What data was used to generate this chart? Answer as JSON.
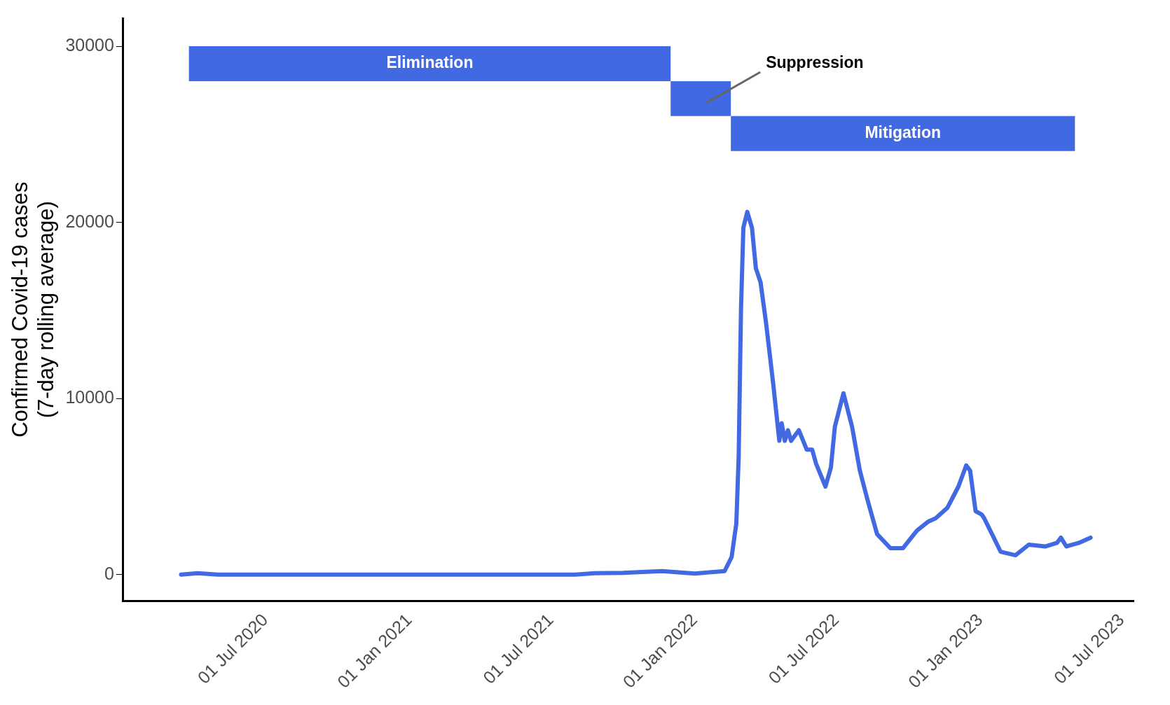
{
  "chart_data": {
    "type": "line",
    "ylabel": "Confirmed Covid-19 cases\n(7-day rolling average)",
    "x": [
      "2020-03-15",
      "2020-04-05",
      "2020-05-01",
      "2021-08-01",
      "2021-08-26",
      "2021-10-01",
      "2021-11-20",
      "2022-01-01",
      "2022-02-08",
      "2022-02-17",
      "2022-02-23",
      "2022-02-26",
      "2022-03-01",
      "2022-03-04",
      "2022-03-09",
      "2022-03-15",
      "2022-03-20",
      "2022-03-26",
      "2022-04-02",
      "2022-04-11",
      "2022-04-19",
      "2022-04-22",
      "2022-04-26",
      "2022-04-30",
      "2022-05-04",
      "2022-05-14",
      "2022-05-24",
      "2022-05-31",
      "2022-06-05",
      "2022-06-17",
      "2022-06-24",
      "2022-06-29",
      "2022-07-10",
      "2022-07-21",
      "2022-07-31",
      "2022-08-10",
      "2022-08-22",
      "2022-09-08",
      "2022-09-24",
      "2022-10-12",
      "2022-10-26",
      "2022-11-05",
      "2022-11-20",
      "2022-12-04",
      "2022-12-14",
      "2022-12-19",
      "2022-12-26",
      "2023-01-03",
      "2023-01-06",
      "2023-01-27",
      "2023-02-15",
      "2023-03-04",
      "2023-03-25",
      "2023-04-09",
      "2023-04-14",
      "2023-04-21",
      "2023-05-07",
      "2023-05-22"
    ],
    "series": [
      {
        "color": "#4169e1",
        "values": [
          0,
          80,
          0,
          0,
          80,
          100,
          200,
          60,
          200,
          1000,
          2900,
          6700,
          15100,
          19700,
          20600,
          19700,
          17400,
          16600,
          14300,
          10900,
          7600,
          8600,
          7600,
          8200,
          7600,
          8200,
          7100,
          7100,
          6300,
          5000,
          6100,
          8400,
          10300,
          8400,
          5900,
          4200,
          2300,
          1500,
          1500,
          2500,
          3000,
          3200,
          3800,
          5000,
          6200,
          5900,
          3600,
          3400,
          3200,
          1300,
          1100,
          1700,
          1600,
          1800,
          2100,
          1600,
          1800,
          2100
        ]
      }
    ],
    "xlim": [
      "2020-01-01",
      "2023-07-16"
    ],
    "xticks": [
      {
        "value": "2020-07-01",
        "label": "01 Jul 2020"
      },
      {
        "value": "2021-01-01",
        "label": "01 Jan 2021"
      },
      {
        "value": "2021-07-01",
        "label": "01 Jul 2021"
      },
      {
        "value": "2022-01-01",
        "label": "01 Jan 2022"
      },
      {
        "value": "2022-07-01",
        "label": "01 Jul 2022"
      },
      {
        "value": "2023-01-01",
        "label": "01 Jan 2023"
      },
      {
        "value": "2023-07-01",
        "label": "01 Jul 2023"
      }
    ],
    "ylim": [
      -1500,
      31600
    ],
    "yticks": [
      0,
      10000,
      20000,
      30000
    ],
    "bands": [
      {
        "axis": "x",
        "from": "2020-03-25",
        "to": "2021-12-01",
        "label": "Elimination",
        "color": "#4169e1"
      },
      {
        "axis": "x",
        "from": "2021-12-01",
        "to": "2022-02-16",
        "label": "Suppression",
        "color": "#4169e1"
      },
      {
        "axis": "x",
        "from": "2022-02-16",
        "to": "2023-05-02",
        "label": "Mitigation",
        "color": "#4169e1"
      }
    ],
    "grid": false,
    "legend": false,
    "marker": "none",
    "line_style": "solid"
  }
}
